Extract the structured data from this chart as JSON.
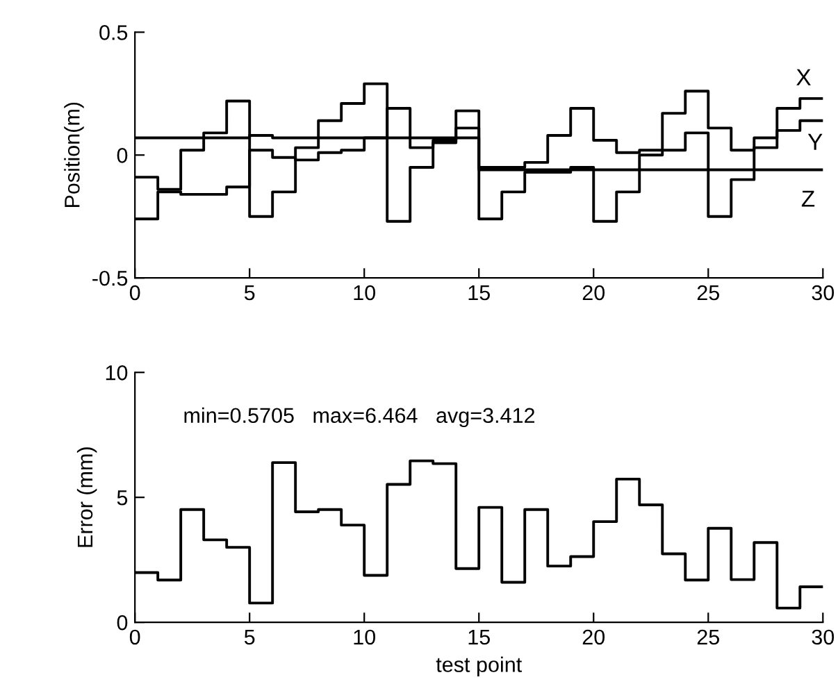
{
  "chart_data": [
    {
      "type": "step",
      "ylabel": "Position(m)",
      "xlim": [
        0,
        30
      ],
      "ylim": [
        -0.5,
        0.5
      ],
      "xticks": [
        0,
        5,
        10,
        15,
        20,
        25,
        30
      ],
      "yticks": [
        {
          "value": -0.5,
          "label": "-0.5"
        },
        0,
        0.5
      ],
      "grid": false,
      "legend": false,
      "x": [
        0,
        1,
        2,
        3,
        4,
        5,
        6,
        7,
        8,
        9,
        10,
        11,
        12,
        13,
        14,
        15,
        16,
        17,
        18,
        19,
        20,
        21,
        22,
        23,
        24,
        25,
        26,
        27,
        28,
        29,
        30
      ],
      "series": [
        {
          "name": "X",
          "color": "#000000",
          "values": [
            -0.26,
            -0.15,
            -0.16,
            -0.16,
            -0.13,
            0.02,
            -0.01,
            -0.02,
            0.01,
            0.02,
            0.07,
            0.19,
            0.03,
            0.05,
            0.11,
            -0.05,
            -0.05,
            -0.03,
            0.08,
            0.19,
            0.06,
            0.01,
            0.02,
            0.17,
            0.26,
            0.11,
            0.02,
            0.07,
            0.19,
            0.23,
            0.23
          ]
        },
        {
          "name": "Y",
          "color": "#000000",
          "values": [
            -0.09,
            -0.14,
            0.02,
            0.09,
            0.22,
            -0.25,
            -0.15,
            0.03,
            0.14,
            0.21,
            0.29,
            -0.27,
            -0.05,
            0.06,
            0.18,
            -0.26,
            -0.15,
            -0.07,
            -0.07,
            -0.05,
            -0.27,
            -0.15,
            0.0,
            0.02,
            0.09,
            -0.25,
            -0.1,
            0.03,
            0.1,
            0.14,
            0.14
          ]
        },
        {
          "name": "Z",
          "color": "#000000",
          "values": [
            0.07,
            0.07,
            0.07,
            0.07,
            0.07,
            0.08,
            0.07,
            0.07,
            0.07,
            0.07,
            0.07,
            0.07,
            0.07,
            0.07,
            0.07,
            -0.06,
            -0.06,
            -0.06,
            -0.06,
            -0.06,
            -0.06,
            -0.06,
            -0.06,
            -0.06,
            -0.06,
            -0.06,
            -0.06,
            -0.06,
            -0.06,
            -0.06,
            -0.06
          ]
        }
      ]
    },
    {
      "type": "step",
      "xlabel": "test point",
      "ylabel": "Error (mm)",
      "xlim": [
        0,
        30
      ],
      "ylim": [
        0,
        10
      ],
      "xticks": [
        0,
        5,
        10,
        15,
        20,
        25,
        30
      ],
      "yticks": [
        0,
        5,
        10
      ],
      "grid": false,
      "legend": false,
      "annotations": [
        "min=0.5705   max=6.464   avg=3.412"
      ],
      "x": [
        0,
        1,
        2,
        3,
        4,
        5,
        6,
        7,
        8,
        9,
        10,
        11,
        12,
        13,
        14,
        15,
        16,
        17,
        18,
        19,
        20,
        21,
        22,
        23,
        24,
        25,
        26,
        27,
        28,
        29,
        30
      ],
      "series": [
        {
          "color": "#000000",
          "values": [
            1.99,
            1.69,
            4.51,
            3.3,
            3.0,
            0.77,
            6.39,
            4.42,
            4.51,
            3.89,
            1.88,
            5.52,
            6.46,
            6.35,
            2.15,
            4.6,
            1.6,
            4.51,
            2.25,
            2.63,
            4.03,
            5.73,
            4.7,
            2.74,
            1.69,
            3.76,
            1.71,
            3.19,
            0.57,
            1.42,
            1.42
          ]
        }
      ]
    }
  ]
}
